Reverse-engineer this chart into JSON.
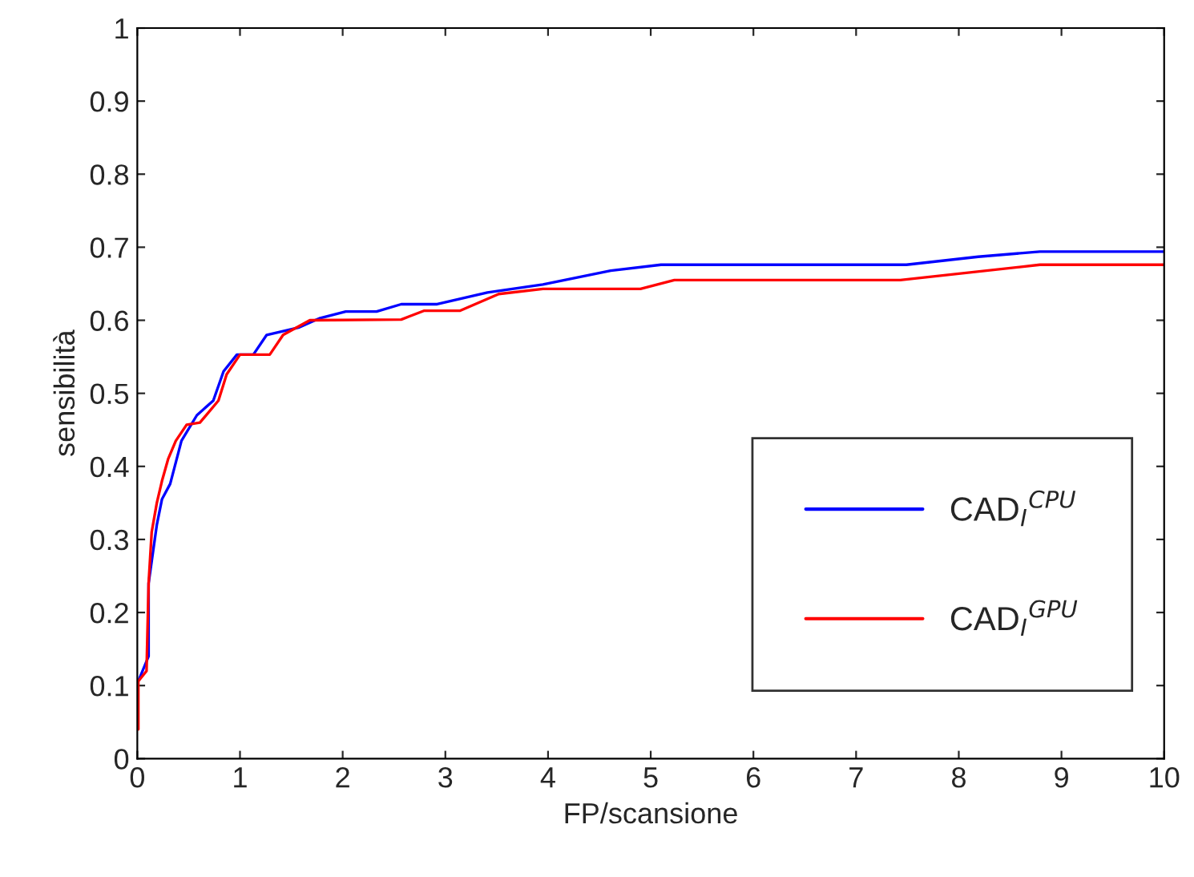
{
  "chart_data": {
    "type": "line",
    "xlabel": "FP/scansione",
    "ylabel": "sensibilità",
    "xlim": [
      0,
      10
    ],
    "ylim": [
      0,
      1
    ],
    "xticks": [
      0,
      1,
      2,
      3,
      4,
      5,
      6,
      7,
      8,
      9,
      10
    ],
    "yticks": [
      0,
      0.1,
      0.2,
      0.3,
      0.4,
      0.5,
      0.6,
      0.7,
      0.8,
      0.9,
      1
    ],
    "grid": false,
    "legend": "bottom right",
    "line_style": "solid",
    "marker": "none",
    "series": [
      {
        "name": "CAD$_{I}$$^{CPU}$",
        "color": "#0000ff",
        "x": [
          0.01,
          0.11,
          0.11,
          0.19,
          0.24,
          0.32,
          0.43,
          0.58,
          0.74,
          0.84,
          0.97,
          1.13,
          1.26,
          1.57,
          1.78,
          2.03,
          2.33,
          2.57,
          2.92,
          3.41,
          3.95,
          4.61,
          5.1,
          7.49,
          8.19,
          8.79,
          10.0
        ],
        "values": [
          0.106,
          0.14,
          0.24,
          0.32,
          0.355,
          0.376,
          0.435,
          0.47,
          0.49,
          0.53,
          0.553,
          0.553,
          0.58,
          0.59,
          0.603,
          0.612,
          0.612,
          0.622,
          0.622,
          0.638,
          0.649,
          0.668,
          0.676,
          0.676,
          0.687,
          0.694,
          0.694
        ]
      },
      {
        "name": "CAD$_{I}$$^{GPU}$",
        "color": "#ff0000",
        "x": [
          0.01,
          0.01,
          0.09,
          0.11,
          0.14,
          0.19,
          0.24,
          0.3,
          0.375,
          0.48,
          0.61,
          0.79,
          0.87,
          1.0,
          1.29,
          1.42,
          1.68,
          2.57,
          2.79,
          3.14,
          3.52,
          3.95,
          4.9,
          5.23,
          7.43,
          8.79,
          10.0
        ],
        "values": [
          0.04,
          0.106,
          0.12,
          0.24,
          0.31,
          0.35,
          0.38,
          0.41,
          0.435,
          0.457,
          0.46,
          0.49,
          0.526,
          0.553,
          0.553,
          0.58,
          0.6,
          0.601,
          0.613,
          0.613,
          0.636,
          0.643,
          0.643,
          0.655,
          0.655,
          0.676,
          0.676
        ]
      }
    ]
  }
}
